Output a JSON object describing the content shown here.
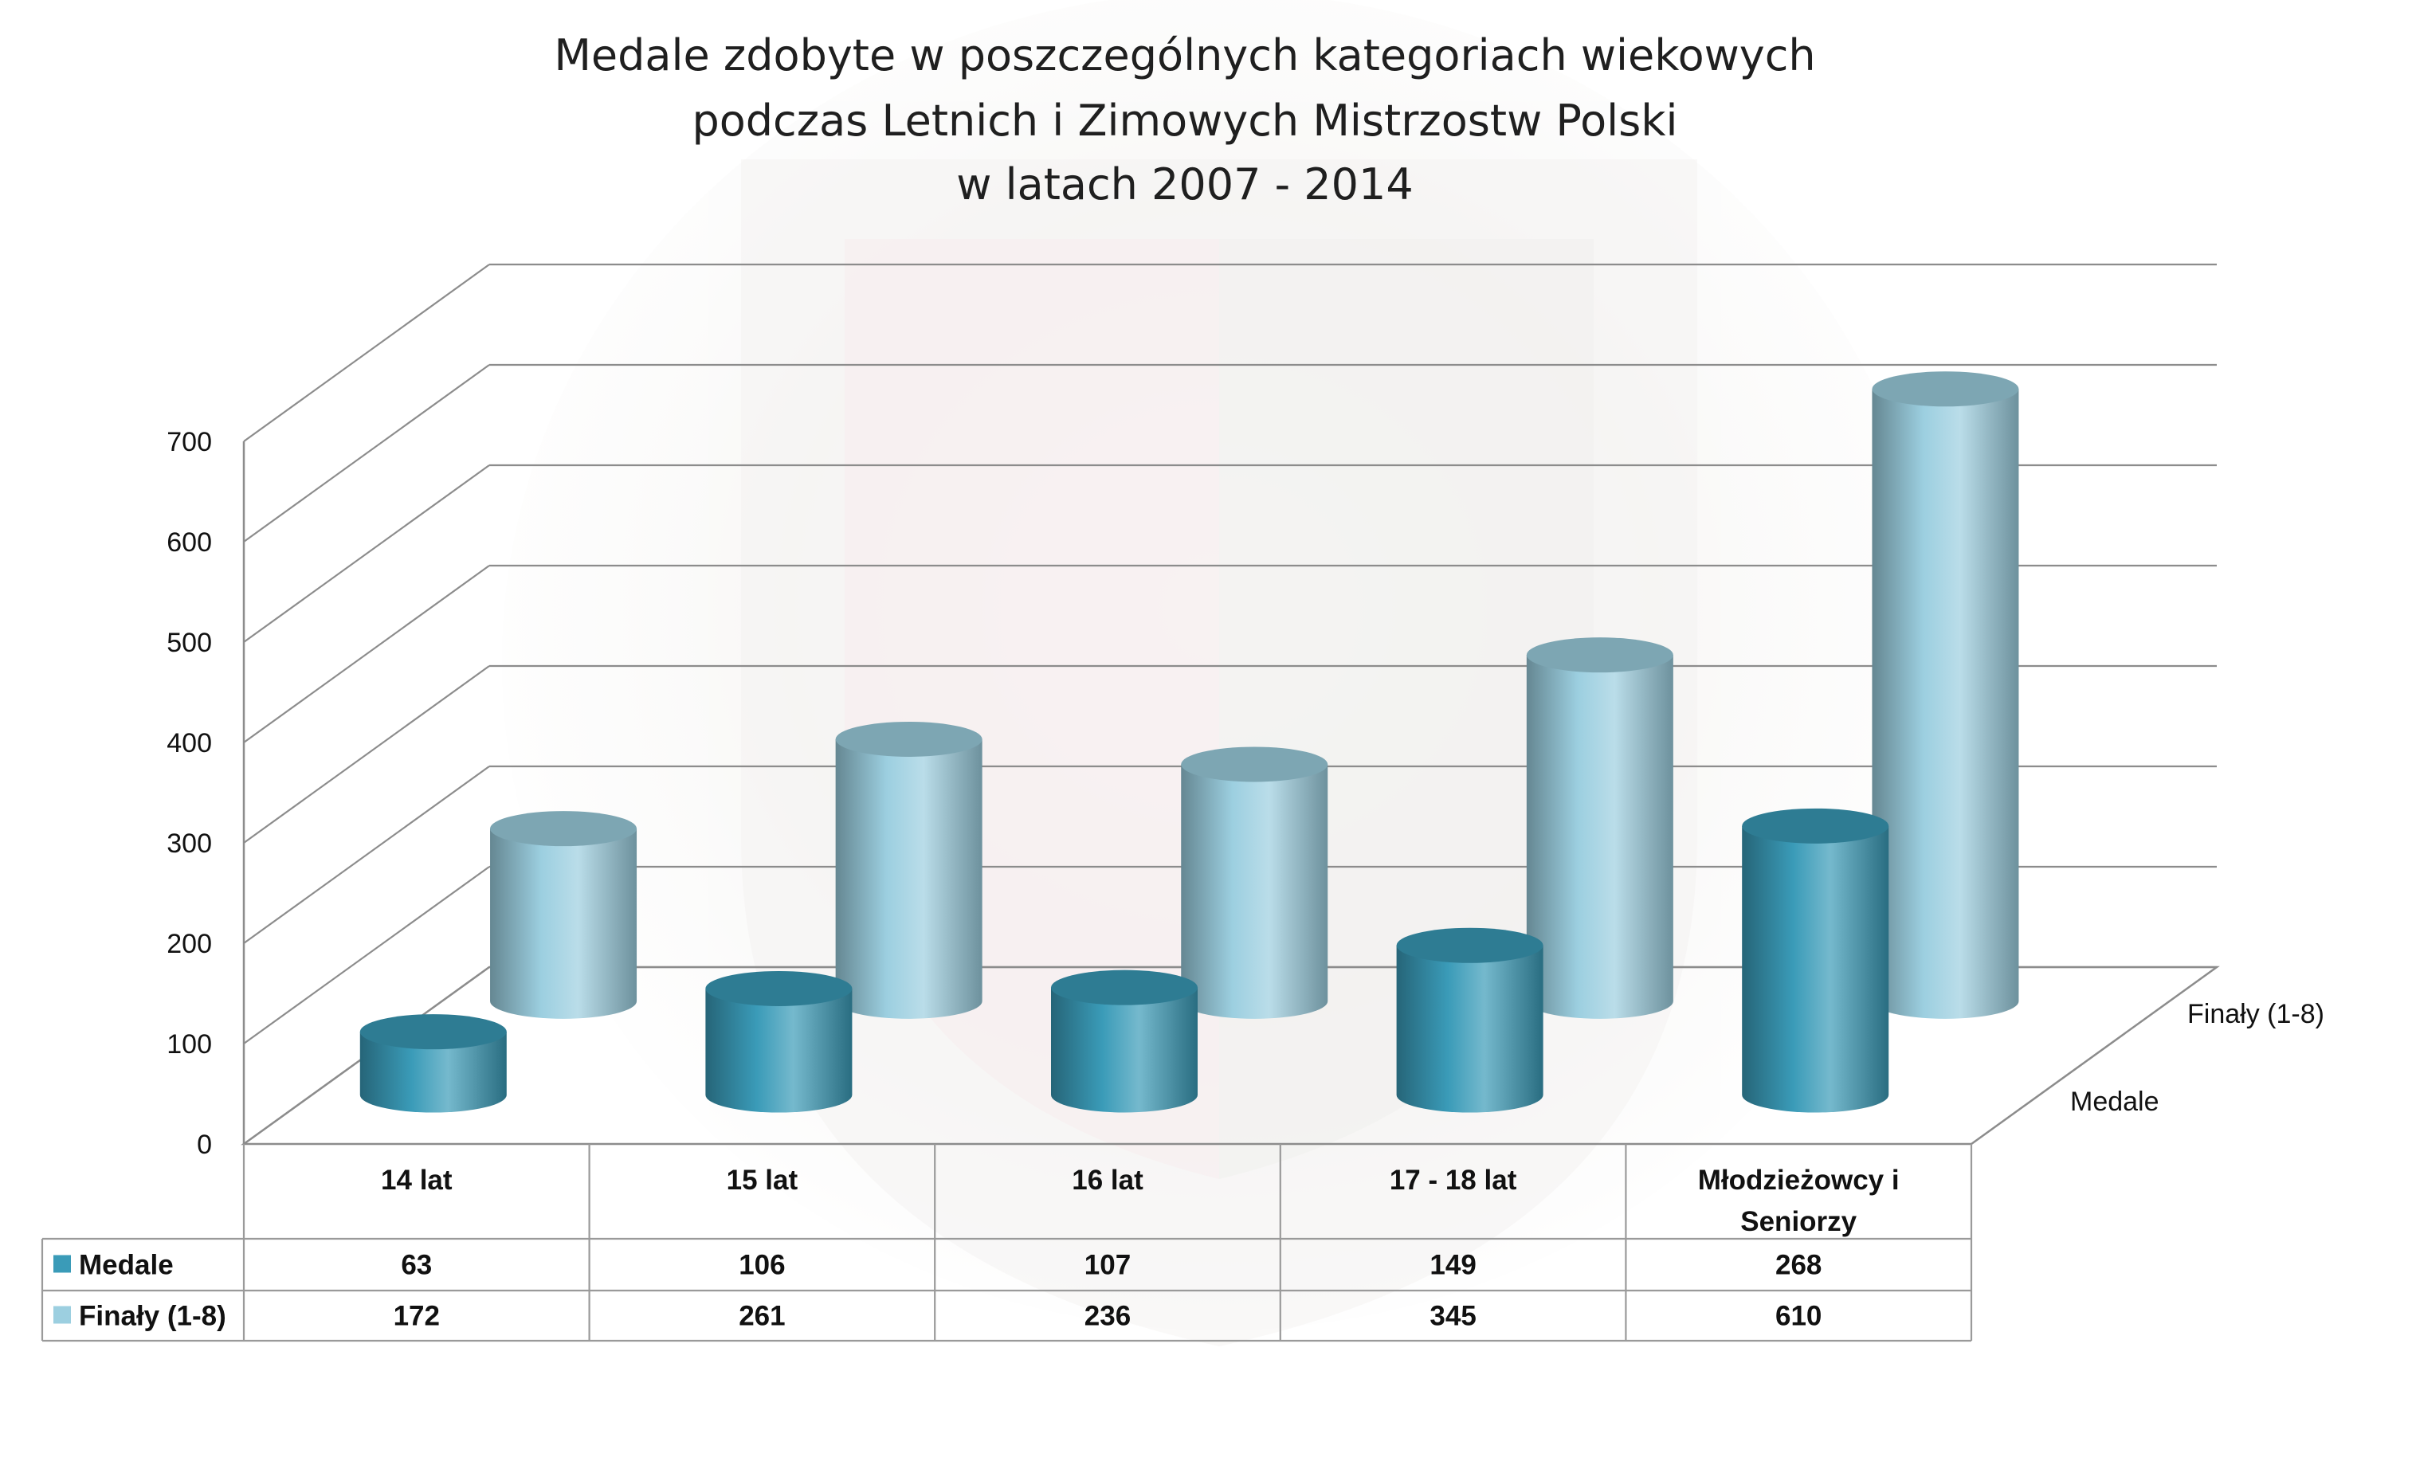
{
  "chart_data": {
    "type": "bar",
    "title": [
      "Medale zdobyte w poszczególnych kategoriach wiekowych",
      "podczas Letnich i Zimowych Mistrzostw Polski",
      "w latach 2007 - 2014"
    ],
    "categories": [
      "14 lat",
      "15 lat",
      "16 lat",
      "17 - 18 lat",
      "Młodzieżowcy i Seniorzy"
    ],
    "category_lines": [
      [
        "14 lat"
      ],
      [
        "15 lat"
      ],
      [
        "16 lat"
      ],
      [
        "17 - 18 lat"
      ],
      [
        "Młodzieżowcy i",
        "Seniorzy"
      ]
    ],
    "series": [
      {
        "name": "Medale",
        "values": [
          63,
          106,
          107,
          149,
          268
        ],
        "color": "#3a9bb8"
      },
      {
        "name": "Finały (1-8)",
        "values": [
          172,
          261,
          236,
          345,
          610
        ],
        "color": "#9ccfe0"
      }
    ],
    "depth_labels": [
      "Finały (1-8)",
      "Medale"
    ],
    "y_ticks": [
      0,
      100,
      200,
      300,
      400,
      500,
      600,
      700
    ],
    "ylim": [
      0,
      700
    ],
    "bar_shape": "cylinder",
    "projection": "3d",
    "grid": true,
    "legend": "data-table-below",
    "table_values": [
      [
        "63",
        "106",
        "107",
        "149",
        "268"
      ],
      [
        "172",
        "261",
        "236",
        "345",
        "610"
      ]
    ],
    "watermark": "WKS Śląsk"
  }
}
